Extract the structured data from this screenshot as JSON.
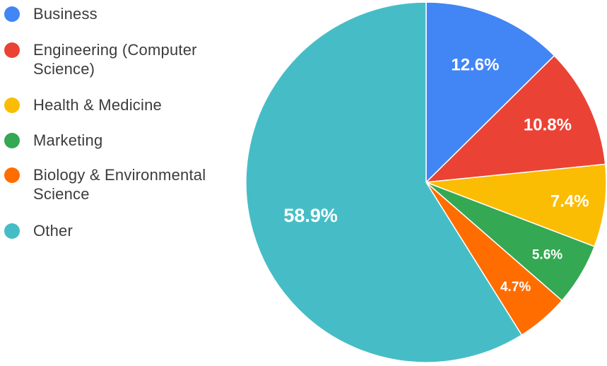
{
  "chart_data": {
    "type": "pie",
    "title": "",
    "legend_position": "left",
    "slices": [
      {
        "label": "Business",
        "value": 12.6,
        "display": "12.6%",
        "color": "#4285f4"
      },
      {
        "label": "Engineering (Computer Science)",
        "value": 10.8,
        "display": "10.8%",
        "color": "#ea4335"
      },
      {
        "label": "Health & Medicine",
        "value": 7.4,
        "display": "7.4%",
        "color": "#fbbc04"
      },
      {
        "label": "Marketing",
        "value": 5.6,
        "display": "5.6%",
        "color": "#34a853"
      },
      {
        "label": "Biology & Environmental Science",
        "value": 4.7,
        "display": "4.7%",
        "color": "#ff6d01"
      },
      {
        "label": "Other",
        "value": 58.9,
        "display": "58.9%",
        "color": "#46bdc6"
      }
    ]
  }
}
